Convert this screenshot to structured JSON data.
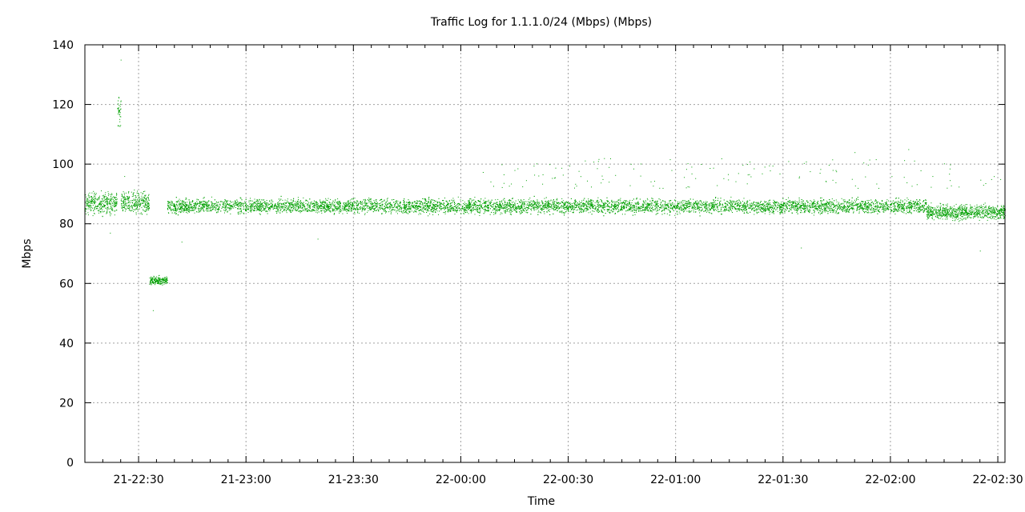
{
  "chart_data": {
    "type": "scatter",
    "title": "Traffic Log for 1.1.1.0/24 (Mbps) (Mbps)",
    "xlabel": "Time",
    "ylabel": "Mbps",
    "ylim": [
      0,
      140
    ],
    "yticks": [
      0,
      20,
      40,
      60,
      80,
      100,
      120,
      140
    ],
    "xlim": [
      "21-22:15",
      "22-02:32"
    ],
    "xticks": [
      "21-22:30",
      "21-23:00",
      "21-23:30",
      "22-00:00",
      "22-00:30",
      "22-01:00",
      "22-01:30",
      "22-02:00",
      "22-02:30"
    ],
    "grid": true,
    "marker_color": "#00a000",
    "series": [
      {
        "segments": [
          {
            "from": "21-22:15",
            "to": "21-22:24",
            "mean": 87,
            "spread": 3
          },
          {
            "from": "21-22:24",
            "to": "21-22:25",
            "mean": 118,
            "spread": 4
          },
          {
            "from": "21-22:25",
            "to": "21-22:33",
            "mean": 87,
            "spread": 3
          },
          {
            "from": "21-22:33",
            "to": "21-22:38",
            "mean": 61,
            "spread": 1.2
          },
          {
            "from": "21-22:38",
            "to": "22-02:10",
            "mean": 86,
            "spread": 2
          },
          {
            "from": "22-02:10",
            "to": "22-02:32",
            "mean": 84,
            "spread": 2
          }
        ],
        "outliers": [
          [
            "21-22:25",
            135
          ],
          [
            "21-22:26",
            96
          ],
          [
            "21-22:22",
            77
          ],
          [
            "21-22:34",
            51
          ],
          [
            "21-22:42",
            74
          ],
          [
            "21-23:20",
            75
          ],
          [
            "22-00:15",
            98
          ],
          [
            "22-00:40",
            102
          ],
          [
            "22-01:20",
            100
          ],
          [
            "22-01:35",
            72
          ],
          [
            "22-01:50",
            104
          ],
          [
            "22-02:05",
            105
          ],
          [
            "22-02:25",
            71
          ]
        ]
      }
    ]
  }
}
